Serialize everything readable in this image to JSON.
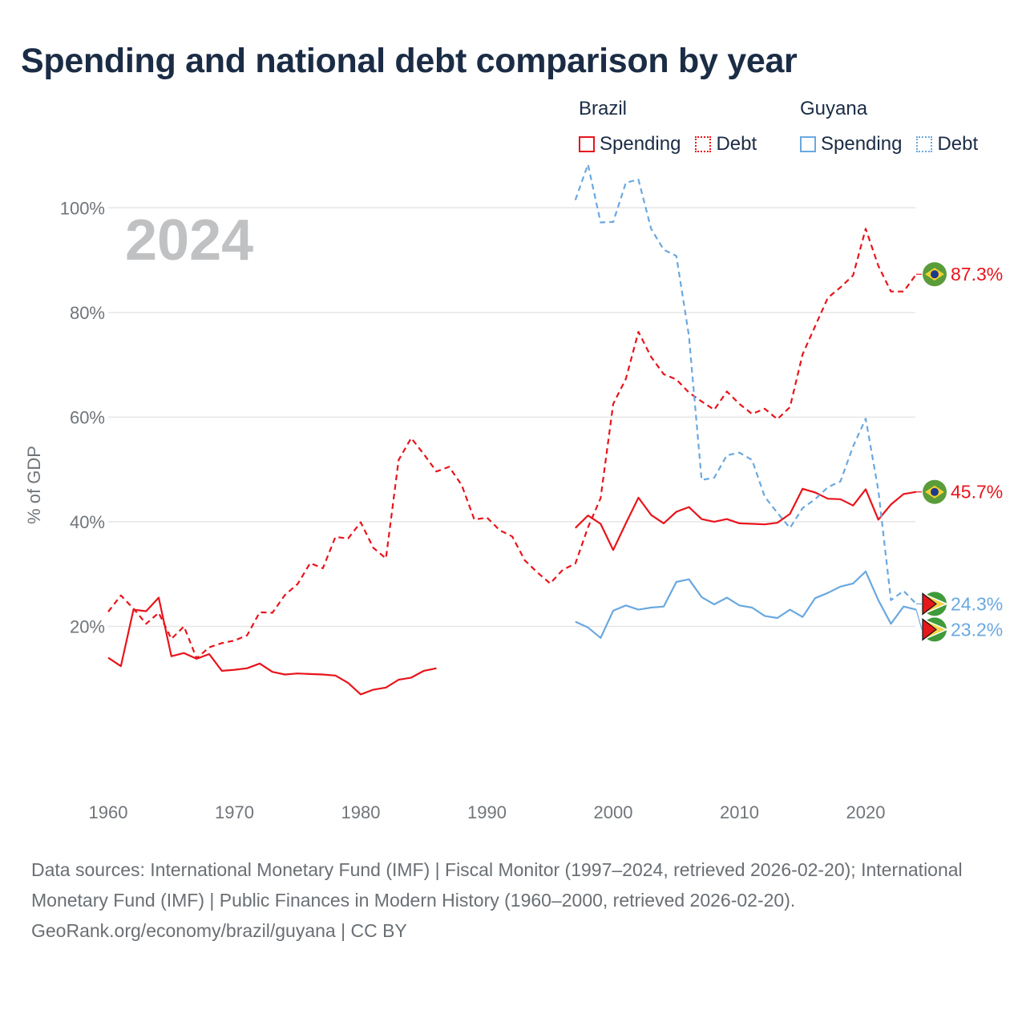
{
  "title": "Spending and national debt comparison by year",
  "legend": {
    "brazil": {
      "name": "Brazil",
      "spending": "Spending",
      "debt": "Debt"
    },
    "guyana": {
      "name": "Guyana",
      "spending": "Spending",
      "debt": "Debt"
    }
  },
  "colors": {
    "brazil": "#e8141b",
    "guyana": "#6aa8e0",
    "grid": "#e6e6e6",
    "axis_text": "#70757a",
    "year_label": "#c0c1c3"
  },
  "chart_data": {
    "type": "line",
    "year_label": "2024",
    "ylabel": "% of GDP",
    "xlim": [
      1960,
      2024
    ],
    "ylim": [
      0,
      110
    ],
    "x_ticks": [
      1960,
      1970,
      1980,
      1990,
      2000,
      2010,
      2020
    ],
    "y_ticks": [
      {
        "value": 20,
        "label": "20%"
      },
      {
        "value": 40,
        "label": "40%"
      },
      {
        "value": 60,
        "label": "60%"
      },
      {
        "value": 80,
        "label": "80%"
      },
      {
        "value": 100,
        "label": "100%"
      }
    ],
    "series": [
      {
        "name": "Brazil Debt",
        "country": "brazil",
        "style": "dashed",
        "end_label": "87.3%",
        "points": [
          [
            1960,
            22.8
          ],
          [
            1961,
            25.9
          ],
          [
            1962,
            23.4
          ],
          [
            1963,
            20.5
          ],
          [
            1964,
            22.6
          ],
          [
            1965,
            17.6
          ],
          [
            1966,
            20.0
          ],
          [
            1967,
            13.9
          ],
          [
            1968,
            16.0
          ],
          [
            1969,
            16.8
          ],
          [
            1970,
            17.3
          ],
          [
            1971,
            18.3
          ],
          [
            1972,
            22.7
          ],
          [
            1973,
            22.6
          ],
          [
            1974,
            26.0
          ],
          [
            1975,
            28.1
          ],
          [
            1976,
            32.1
          ],
          [
            1977,
            31.1
          ],
          [
            1978,
            37.1
          ],
          [
            1979,
            36.8
          ],
          [
            1980,
            39.9
          ],
          [
            1981,
            35.0
          ],
          [
            1982,
            33.0
          ],
          [
            1983,
            51.8
          ],
          [
            1984,
            56.0
          ],
          [
            1985,
            52.9
          ],
          [
            1986,
            49.6
          ],
          [
            1987,
            50.5
          ],
          [
            1988,
            47.0
          ],
          [
            1989,
            40.4
          ],
          [
            1990,
            40.8
          ],
          [
            1991,
            38.4
          ],
          [
            1992,
            37.2
          ],
          [
            1993,
            32.6
          ],
          [
            1994,
            30.3
          ],
          [
            1995,
            28.2
          ],
          [
            1996,
            30.8
          ],
          [
            1997,
            32.0
          ],
          [
            1998,
            38.9
          ],
          [
            1999,
            44.5
          ],
          [
            2000,
            62.5
          ],
          [
            2001,
            67.3
          ],
          [
            2002,
            76.3
          ],
          [
            2003,
            71.5
          ],
          [
            2004,
            68.2
          ],
          [
            2005,
            67.2
          ],
          [
            2006,
            64.7
          ],
          [
            2007,
            63.0
          ],
          [
            2008,
            61.4
          ],
          [
            2009,
            64.9
          ],
          [
            2010,
            62.5
          ],
          [
            2011,
            60.6
          ],
          [
            2012,
            61.6
          ],
          [
            2013,
            59.6
          ],
          [
            2014,
            61.9
          ],
          [
            2015,
            72.0
          ],
          [
            2016,
            77.4
          ],
          [
            2017,
            82.8
          ],
          [
            2018,
            84.8
          ],
          [
            2019,
            87.1
          ],
          [
            2020,
            96.0
          ],
          [
            2021,
            88.9
          ],
          [
            2022,
            84.0
          ],
          [
            2023,
            84.0
          ],
          [
            2024,
            87.3
          ]
        ]
      },
      {
        "name": "Brazil Spending",
        "country": "brazil",
        "style": "solid",
        "end_label": "45.7%",
        "points": [
          [
            1960,
            14.0
          ],
          [
            1961,
            12.4
          ],
          [
            1962,
            23.2
          ],
          [
            1963,
            22.9
          ],
          [
            1964,
            25.5
          ],
          [
            1965,
            14.3
          ],
          [
            1966,
            14.9
          ],
          [
            1967,
            13.8
          ],
          [
            1968,
            14.7
          ],
          [
            1969,
            11.5
          ],
          [
            1970,
            11.7
          ],
          [
            1971,
            12.0
          ],
          [
            1972,
            12.9
          ],
          [
            1973,
            11.3
          ],
          [
            1974,
            10.8
          ],
          [
            1975,
            11.0
          ],
          [
            1976,
            10.9
          ],
          [
            1977,
            10.8
          ],
          [
            1978,
            10.6
          ],
          [
            1979,
            9.2
          ],
          [
            1980,
            7.0
          ],
          [
            1981,
            7.9
          ],
          [
            1982,
            8.3
          ],
          [
            1983,
            9.8
          ],
          [
            1984,
            10.2
          ],
          [
            1985,
            11.5
          ],
          [
            1986,
            12.0
          ],
          [
            1997,
            38.8
          ],
          [
            1998,
            41.2
          ],
          [
            1999,
            39.6
          ],
          [
            2000,
            34.6
          ],
          [
            2001,
            39.7
          ],
          [
            2002,
            44.6
          ],
          [
            2003,
            41.3
          ],
          [
            2004,
            39.7
          ],
          [
            2005,
            41.9
          ],
          [
            2006,
            42.8
          ],
          [
            2007,
            40.5
          ],
          [
            2008,
            40.0
          ],
          [
            2009,
            40.5
          ],
          [
            2010,
            39.7
          ],
          [
            2011,
            39.6
          ],
          [
            2012,
            39.5
          ],
          [
            2013,
            39.8
          ],
          [
            2014,
            41.5
          ],
          [
            2015,
            46.3
          ],
          [
            2016,
            45.6
          ],
          [
            2017,
            44.4
          ],
          [
            2018,
            44.3
          ],
          [
            2019,
            43.1
          ],
          [
            2020,
            46.2
          ],
          [
            2021,
            40.4
          ],
          [
            2022,
            43.3
          ],
          [
            2023,
            45.3
          ],
          [
            2024,
            45.7
          ]
        ]
      },
      {
        "name": "Guyana Debt",
        "country": "guyana",
        "style": "dashed",
        "end_label": "24.3%",
        "points": [
          [
            1997,
            101.5
          ],
          [
            1998,
            108.3
          ],
          [
            1999,
            97.2
          ],
          [
            2000,
            97.3
          ],
          [
            2001,
            104.8
          ],
          [
            2002,
            105.4
          ],
          [
            2003,
            96.0
          ],
          [
            2004,
            92.0
          ],
          [
            2005,
            90.8
          ],
          [
            2006,
            75.5
          ],
          [
            2007,
            48.0
          ],
          [
            2008,
            48.4
          ],
          [
            2009,
            52.7
          ],
          [
            2010,
            53.2
          ],
          [
            2011,
            51.8
          ],
          [
            2012,
            44.8
          ],
          [
            2013,
            41.7
          ],
          [
            2014,
            38.8
          ],
          [
            2015,
            42.6
          ],
          [
            2016,
            44.3
          ],
          [
            2017,
            46.6
          ],
          [
            2018,
            47.7
          ],
          [
            2019,
            54.4
          ],
          [
            2020,
            59.7
          ],
          [
            2021,
            46.0
          ],
          [
            2022,
            25.0
          ],
          [
            2023,
            26.8
          ],
          [
            2024,
            24.3
          ]
        ]
      },
      {
        "name": "Guyana Spending",
        "country": "guyana",
        "style": "solid",
        "end_label": "23.2%",
        "points": [
          [
            1997,
            20.9
          ],
          [
            1998,
            19.8
          ],
          [
            1999,
            17.8
          ],
          [
            2000,
            23.0
          ],
          [
            2001,
            24.0
          ],
          [
            2002,
            23.2
          ],
          [
            2003,
            23.6
          ],
          [
            2004,
            23.8
          ],
          [
            2005,
            28.5
          ],
          [
            2006,
            29.0
          ],
          [
            2007,
            25.6
          ],
          [
            2008,
            24.2
          ],
          [
            2009,
            25.5
          ],
          [
            2010,
            24.0
          ],
          [
            2011,
            23.6
          ],
          [
            2012,
            22.0
          ],
          [
            2013,
            21.6
          ],
          [
            2014,
            23.2
          ],
          [
            2015,
            21.8
          ],
          [
            2016,
            25.4
          ],
          [
            2017,
            26.4
          ],
          [
            2018,
            27.6
          ],
          [
            2019,
            28.2
          ],
          [
            2020,
            30.5
          ],
          [
            2021,
            25.0
          ],
          [
            2022,
            20.5
          ],
          [
            2023,
            23.8
          ],
          [
            2024,
            23.2
          ]
        ]
      }
    ]
  },
  "footer": {
    "sources": "Data sources: International Monetary Fund (IMF) | Fiscal Monitor (1997–2024, retrieved 2026-02-20); International Monetary Fund (IMF) | Public Finances in Modern History (1960–2000, retrieved 2026-02-20).",
    "credit": "GeoRank.org/economy/brazil/guyana | CC BY"
  }
}
